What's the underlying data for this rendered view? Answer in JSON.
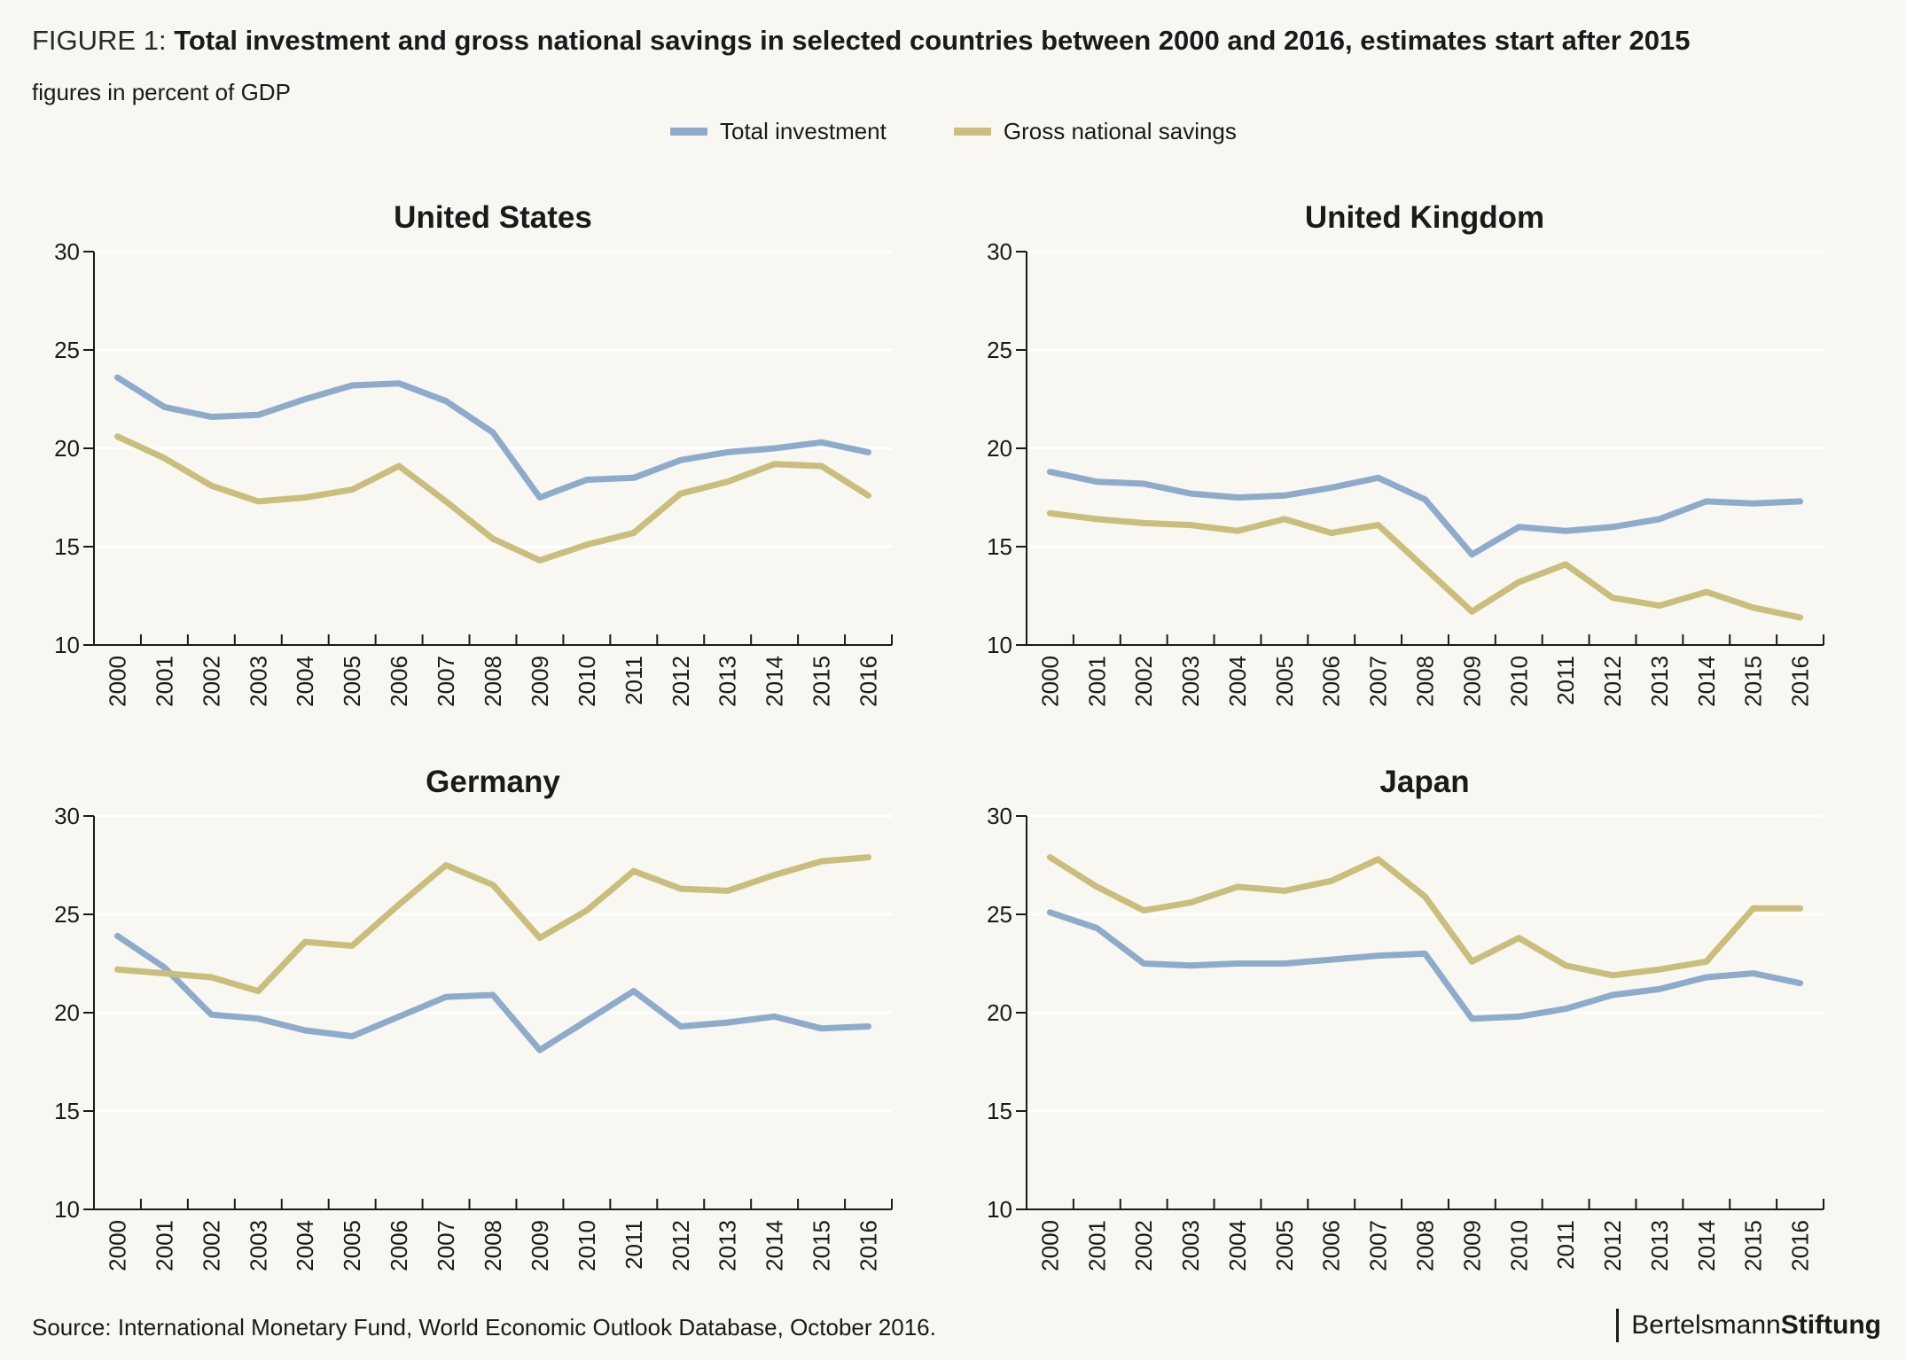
{
  "header": {
    "figure_label": "FIGURE 1: ",
    "title": "Total investment and gross national savings in selected countries between 2000 and 2016, estimates start after 2015",
    "subtitle": "figures in percent of GDP"
  },
  "legend": [
    {
      "name": "Total investment",
      "color": "#8eabcb"
    },
    {
      "name": "Gross national savings",
      "color": "#c9be7b"
    }
  ],
  "footer": {
    "source": "Source: International Monetary Fund, World Economic Outlook Database, October 2016.",
    "brand_part1": "Bertelsmann",
    "brand_part2": "Stiftung"
  },
  "chart_data": [
    {
      "type": "line",
      "title": "United States",
      "xlabel": "",
      "ylabel": "",
      "ylim": [
        10,
        30
      ],
      "yticks": [
        10,
        15,
        20,
        25,
        30
      ],
      "grid": "horizontal",
      "x": [
        "2000",
        "2001",
        "2002",
        "2003",
        "2004",
        "2005",
        "2006",
        "2007",
        "2008",
        "2009",
        "2010",
        "2011",
        "2012",
        "2013",
        "2014",
        "2015",
        "2016"
      ],
      "series": [
        {
          "name": "Total investment",
          "color": "#8eabcb",
          "values": [
            23.6,
            22.1,
            21.6,
            21.7,
            22.5,
            23.2,
            23.3,
            22.4,
            20.8,
            17.5,
            18.4,
            18.5,
            19.4,
            19.8,
            20.0,
            20.3,
            19.8
          ]
        },
        {
          "name": "Gross national savings",
          "color": "#c9be7b",
          "values": [
            20.6,
            19.5,
            18.1,
            17.3,
            17.5,
            17.9,
            19.1,
            17.3,
            15.4,
            14.3,
            15.1,
            15.7,
            17.7,
            18.3,
            19.2,
            19.1,
            17.6
          ]
        }
      ]
    },
    {
      "type": "line",
      "title": "United Kingdom",
      "xlabel": "",
      "ylabel": "",
      "ylim": [
        10,
        30
      ],
      "yticks": [
        10,
        15,
        20,
        25,
        30
      ],
      "grid": "horizontal",
      "x": [
        "2000",
        "2001",
        "2002",
        "2003",
        "2004",
        "2005",
        "2006",
        "2007",
        "2008",
        "2009",
        "2010",
        "2011",
        "2012",
        "2013",
        "2014",
        "2015",
        "2016"
      ],
      "series": [
        {
          "name": "Total investment",
          "color": "#8eabcb",
          "values": [
            18.8,
            18.3,
            18.2,
            17.7,
            17.5,
            17.6,
            18.0,
            18.5,
            17.4,
            14.6,
            16.0,
            15.8,
            16.0,
            16.4,
            17.3,
            17.2,
            17.3
          ]
        },
        {
          "name": "Gross national savings",
          "color": "#c9be7b",
          "values": [
            16.7,
            16.4,
            16.2,
            16.1,
            15.8,
            16.4,
            15.7,
            16.1,
            13.9,
            11.7,
            13.2,
            14.1,
            12.4,
            12.0,
            12.7,
            11.9,
            11.4
          ]
        }
      ]
    },
    {
      "type": "line",
      "title": "Germany",
      "xlabel": "",
      "ylabel": "",
      "ylim": [
        10,
        30
      ],
      "yticks": [
        10,
        15,
        20,
        25,
        30
      ],
      "grid": "horizontal",
      "x": [
        "2000",
        "2001",
        "2002",
        "2003",
        "2004",
        "2005",
        "2006",
        "2007",
        "2008",
        "2009",
        "2010",
        "2011",
        "2012",
        "2013",
        "2014",
        "2015",
        "2016"
      ],
      "series": [
        {
          "name": "Total investment",
          "color": "#8eabcb",
          "values": [
            23.9,
            22.3,
            19.9,
            19.7,
            19.1,
            18.8,
            19.8,
            20.8,
            20.9,
            18.1,
            19.6,
            21.1,
            19.3,
            19.5,
            19.8,
            19.2,
            19.3
          ]
        },
        {
          "name": "Gross national savings",
          "color": "#c9be7b",
          "values": [
            22.2,
            22.0,
            21.8,
            21.1,
            23.6,
            23.4,
            25.5,
            27.5,
            26.5,
            23.8,
            25.2,
            27.2,
            26.3,
            26.2,
            27.0,
            27.7,
            27.9
          ]
        }
      ]
    },
    {
      "type": "line",
      "title": "Japan",
      "xlabel": "",
      "ylabel": "",
      "ylim": [
        10,
        30
      ],
      "yticks": [
        10,
        15,
        20,
        25,
        30
      ],
      "grid": "horizontal",
      "x": [
        "2000",
        "2001",
        "2002",
        "2003",
        "2004",
        "2005",
        "2006",
        "2007",
        "2008",
        "2009",
        "2010",
        "2011",
        "2012",
        "2013",
        "2014",
        "2015",
        "2016"
      ],
      "series": [
        {
          "name": "Total investment",
          "color": "#8eabcb",
          "values": [
            25.1,
            24.3,
            22.5,
            22.4,
            22.5,
            22.5,
            22.7,
            22.9,
            23.0,
            19.7,
            19.8,
            20.2,
            20.9,
            21.2,
            21.8,
            22.0,
            21.5
          ]
        },
        {
          "name": "Gross national savings",
          "color": "#c9be7b",
          "values": [
            27.9,
            26.4,
            25.2,
            25.6,
            26.4,
            26.2,
            26.7,
            27.8,
            25.9,
            22.6,
            23.8,
            22.4,
            21.9,
            22.2,
            22.6,
            25.3,
            25.3
          ]
        }
      ]
    }
  ]
}
